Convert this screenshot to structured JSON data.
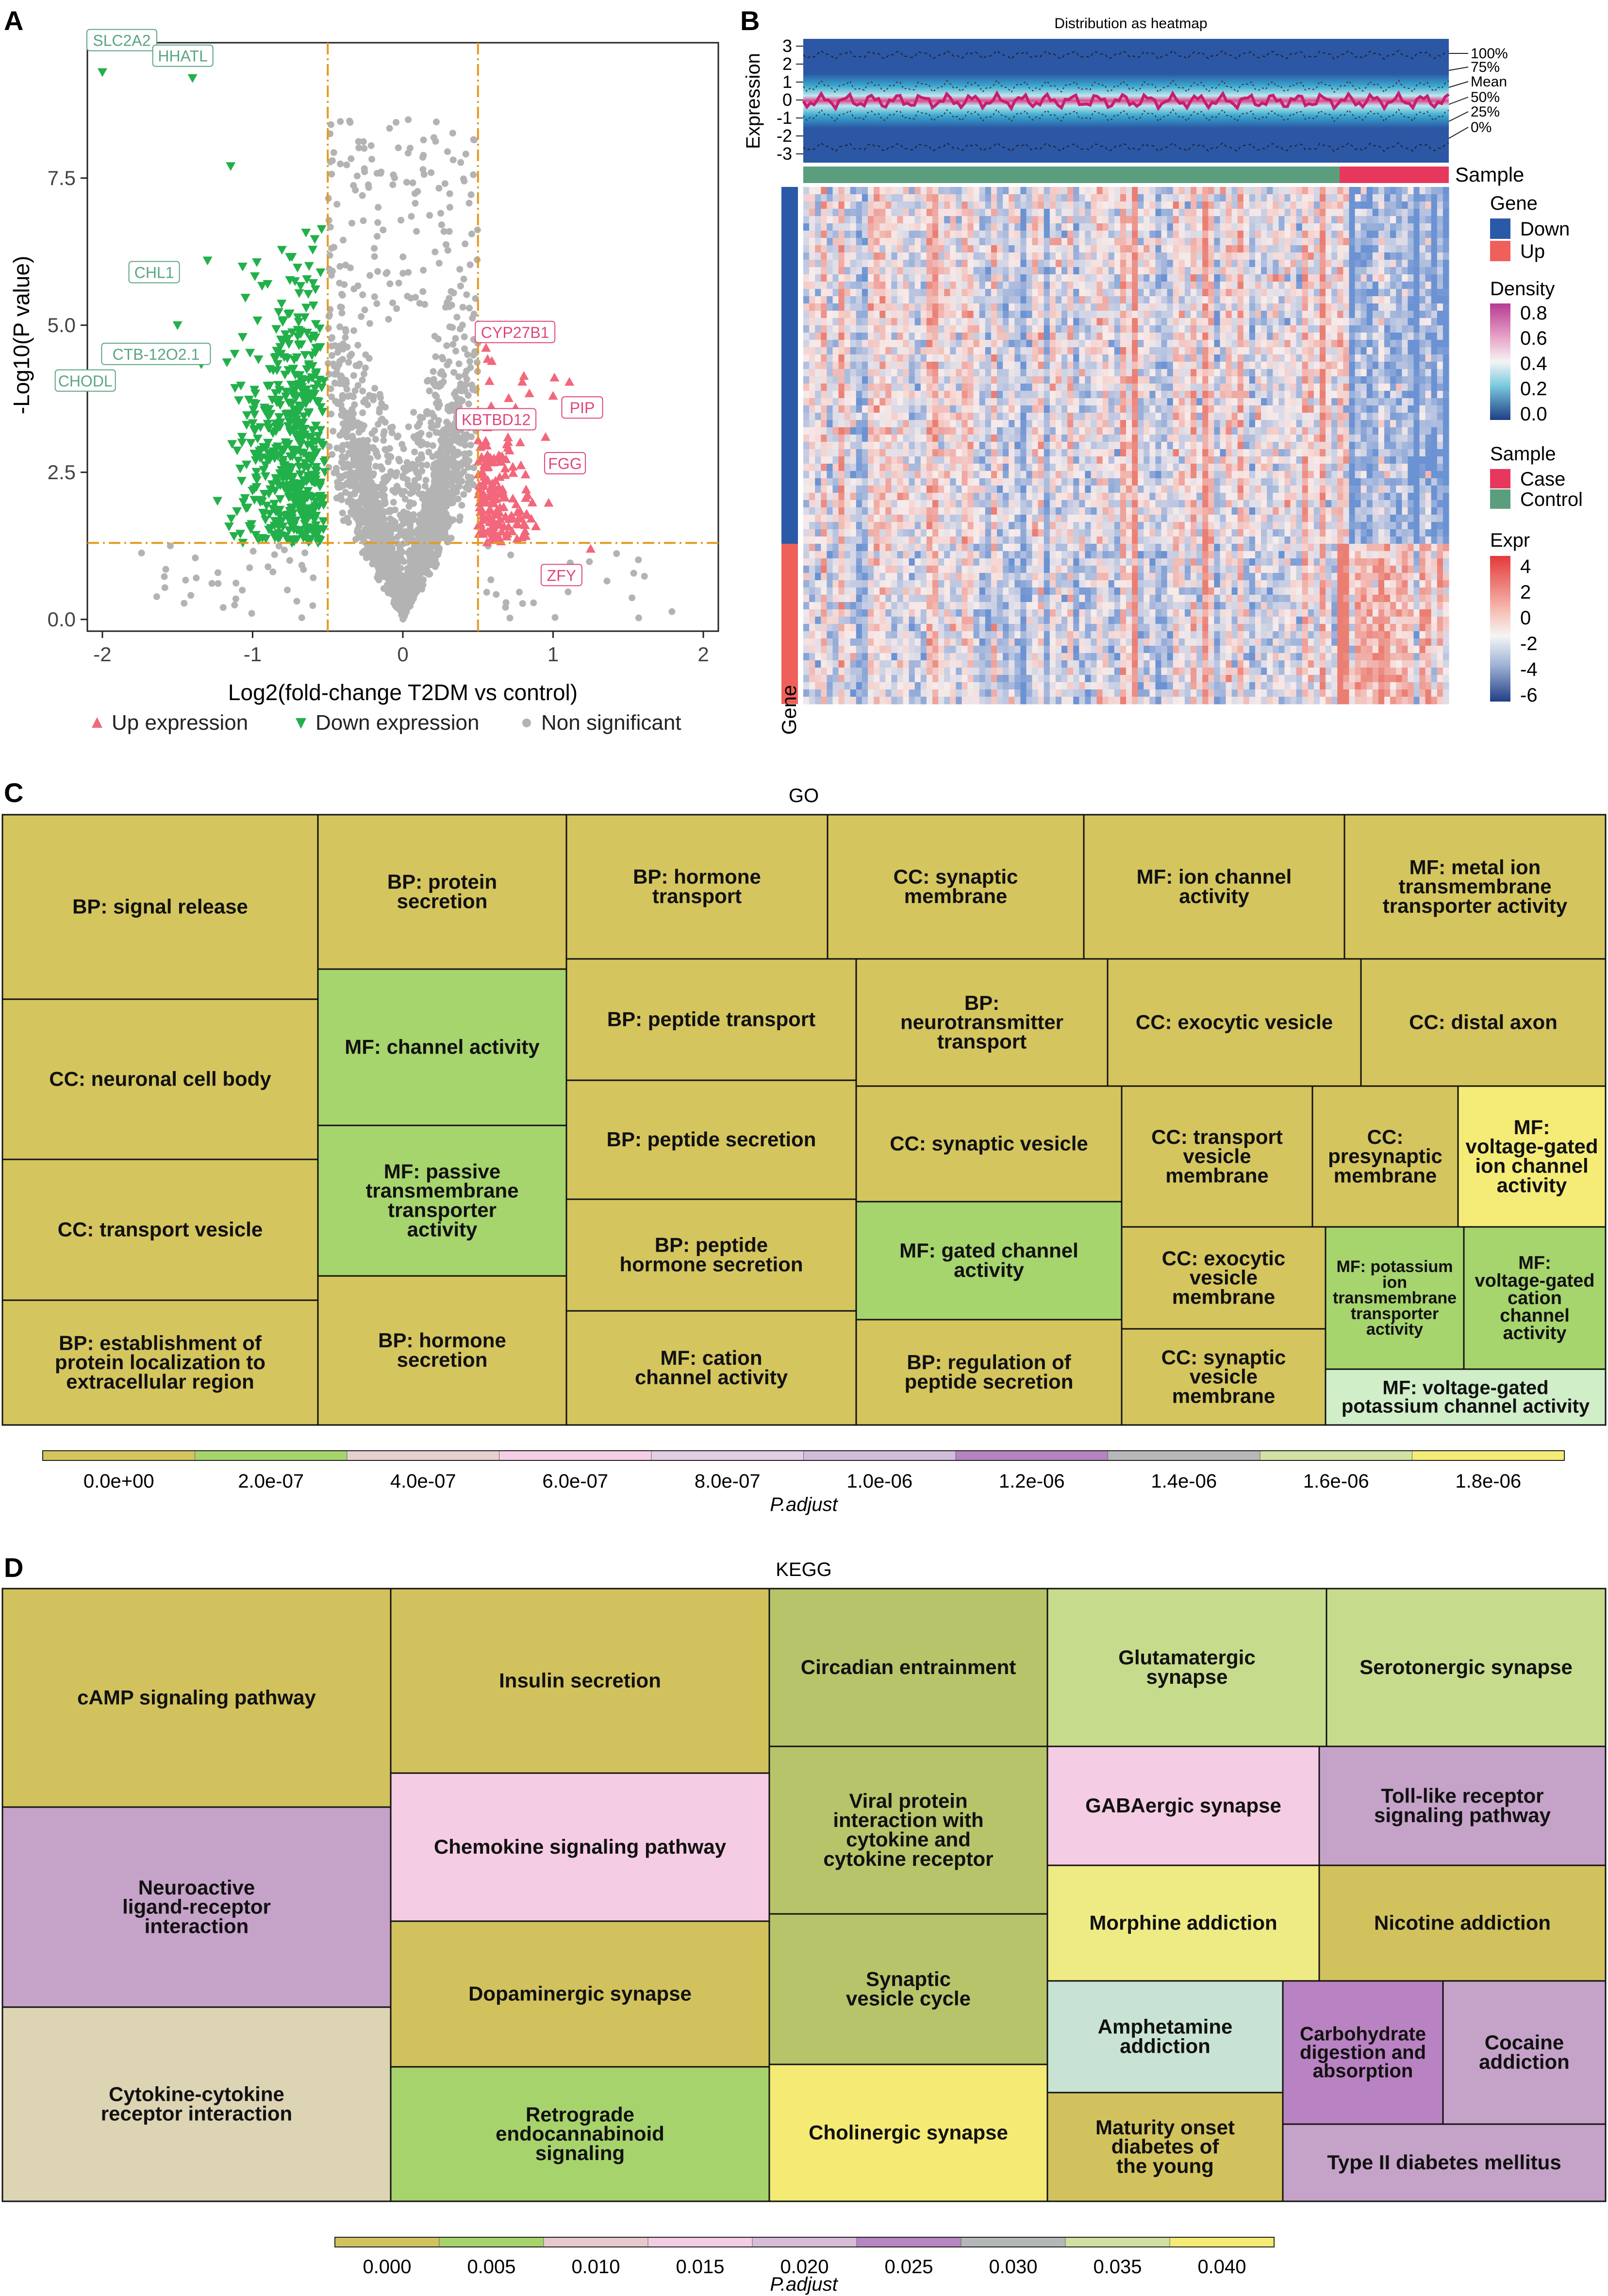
{
  "panels": {
    "a": "A",
    "b": "B",
    "c": "C",
    "d": "D"
  },
  "chart_data": [
    {
      "panel": "A",
      "type": "scatter",
      "xlabel": "Log2(fold-change T2DM vs control)",
      "ylabel": "-Log10(P value)",
      "xlim": [
        -2.1,
        2.1
      ],
      "ylim": [
        -0.2,
        9.8
      ],
      "x_ticks": [
        "-2",
        "-1",
        "0",
        "1",
        "2"
      ],
      "y_ticks": [
        "0.0",
        "2.5",
        "5.0",
        "7.5"
      ],
      "thresholds": {
        "fc": [
          -0.5,
          0.5
        ],
        "p": 1.3
      },
      "legend": [
        "Up expression",
        "Down expression",
        "Non significant"
      ],
      "legend_position": "bottom",
      "colors": {
        "up": "#f2677b",
        "down": "#22b04a",
        "ns": "#b3b3b3",
        "threshold": "#e69a1e"
      },
      "labeled_points": [
        {
          "gene": "SLC2A2",
          "x": -2.0,
          "y": 9.3,
          "group": "down"
        },
        {
          "gene": "HHATL",
          "x": -1.4,
          "y": 9.2,
          "group": "down"
        },
        {
          "gene": "CHL1",
          "x": -1.3,
          "y": 6.1,
          "group": "down"
        },
        {
          "gene": "CTB-12O2.1",
          "x": -0.9,
          "y": 5.7,
          "group": "down"
        },
        {
          "gene": "CHODL",
          "x": -1.5,
          "y": 5.0,
          "group": "down"
        },
        {
          "gene": "CYP27B1",
          "x": 0.65,
          "y": 5.0,
          "group": "up"
        },
        {
          "gene": "KBTBD12",
          "x": 0.75,
          "y": 3.6,
          "group": "up"
        },
        {
          "gene": "PIP",
          "x": 1.0,
          "y": 3.8,
          "group": "up"
        },
        {
          "gene": "FGG",
          "x": 0.95,
          "y": 3.1,
          "group": "up"
        },
        {
          "gene": "ZFY",
          "x": 1.25,
          "y": 1.2,
          "group": "up"
        }
      ]
    },
    {
      "panel": "B",
      "type": "heatmap",
      "title": "Distribution as heatmap",
      "top_ylabel": "Expression",
      "top_ticks": [
        "3",
        "2",
        "1",
        "0",
        "-1",
        "-2",
        "-3"
      ],
      "quantile_labels": [
        "100%",
        "75%",
        "Mean",
        "50%",
        "25%",
        "0%"
      ],
      "sample_bar_label": "Sample",
      "gene_bar_label": "Gene",
      "legends": [
        {
          "title": "Gene",
          "items": [
            {
              "label": "Down",
              "color": "#2a59a8"
            },
            {
              "label": "Up",
              "color": "#f0605a"
            }
          ]
        },
        {
          "title": "Density",
          "ticks": [
            "0.8",
            "0.6",
            "0.4",
            "0.2",
            "0.0"
          ]
        },
        {
          "title": "Sample",
          "items": [
            {
              "label": "Case",
              "color": "#e8375d"
            },
            {
              "label": "Control",
              "color": "#5a9e7e"
            }
          ]
        },
        {
          "title": "Expr",
          "ticks": [
            "4",
            "2",
            "0",
            "-2",
            "-4",
            "-6"
          ]
        }
      ]
    },
    {
      "panel": "C",
      "type": "treemap",
      "title": "GO",
      "colorbar_label": "P.adjust",
      "colorbar_ticks": [
        "0.0e+00",
        "2.0e-07",
        "4.0e-07",
        "6.0e-07",
        "8.0e-07",
        "1.0e-06",
        "1.2e-06",
        "1.4e-06",
        "1.6e-06",
        "1.8e-06"
      ],
      "colorbar_colors": [
        "#d4c55e",
        "#a6d46d",
        "#e8d0cf",
        "#f5cde5",
        "#e3cfe3",
        "#d1bcdc",
        "#b583c0",
        "#b6b8b9",
        "#d3e2a2",
        "#f5ec77"
      ]
    },
    {
      "panel": "D",
      "type": "treemap",
      "title": "KEGG",
      "colorbar_label": "P.adjust",
      "colorbar_ticks": [
        "0.000",
        "0.005",
        "0.010",
        "0.015",
        "0.020",
        "0.025",
        "0.030",
        "0.035",
        "0.040"
      ],
      "colorbar_colors": [
        "#d2c25d",
        "#a7d36c",
        "#e7c9cc",
        "#f4cce3",
        "#d6bcd9",
        "#b785c3",
        "#b4b7b7",
        "#cfe0a0",
        "#f4ea74"
      ]
    }
  ]
}
